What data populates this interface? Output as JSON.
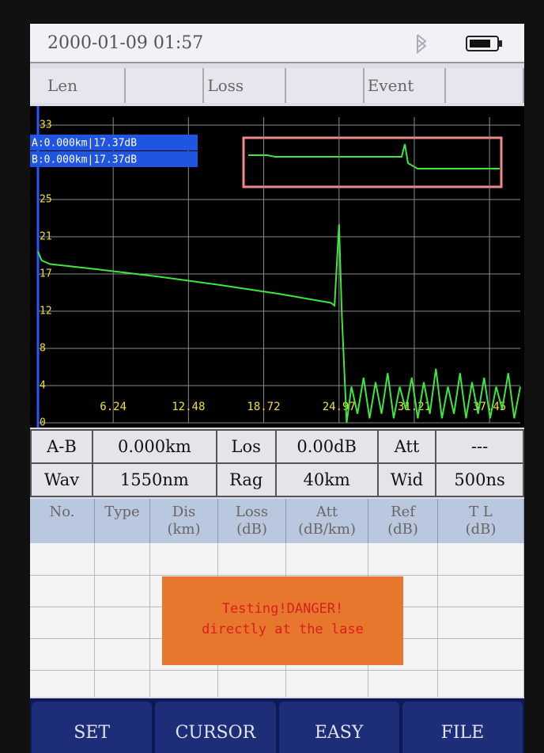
{
  "status": {
    "datetime": "2000-01-09 01:57"
  },
  "tabs": [
    "Len",
    "Loss",
    "Event"
  ],
  "chart_data": {
    "type": "line",
    "cursor_labels": [
      "A:0.000km|17.37dB",
      "B:0.000km|17.37dB"
    ],
    "x": [
      0,
      0.3,
      1,
      5,
      10,
      15,
      20,
      24.3,
      24.6,
      24.97,
      25.2,
      25.6,
      26,
      26.5,
      27,
      27.5,
      28,
      28.5,
      29,
      29.5,
      30,
      30.5,
      31,
      31.5,
      32,
      32.5,
      33,
      33.5,
      34,
      34.5,
      35,
      35.5,
      36,
      36.5,
      37,
      37.5,
      38,
      38.5,
      39,
      39.5,
      40
    ],
    "series": [
      {
        "color": "#3ee63e",
        "values": [
          19,
          18,
          17.6,
          17,
          16.2,
          15.3,
          14.3,
          13.3,
          13,
          22,
          12,
          0,
          4,
          1,
          5,
          0.5,
          4.5,
          1,
          5.5,
          0.5,
          4,
          1.5,
          5,
          0.5,
          4.5,
          1,
          6,
          0.5,
          4,
          1,
          5.5,
          0.5,
          4.5,
          1,
          5,
          0.5,
          4,
          1.5,
          5.5,
          0.5,
          4
        ]
      }
    ],
    "xlim": [
      0,
      40
    ],
    "ylim": [
      0,
      33
    ],
    "xticks": [
      6.24,
      12.48,
      18.72,
      24.97,
      31.21,
      37.45
    ],
    "yticks": [
      0,
      {
        "value": 4.125,
        "label": "4"
      },
      {
        "value": 8.25,
        "label": "8"
      },
      {
        "value": 12.375,
        "label": "12"
      },
      {
        "value": 16.5,
        "label": "17"
      },
      {
        "value": 20.625,
        "label": "21"
      },
      {
        "value": 24.75,
        "label": "25"
      },
      33
    ],
    "grid": true
  },
  "info": {
    "rows": [
      [
        "A-B",
        "0.000km",
        "Los",
        "0.00dB",
        "Att",
        "---"
      ],
      [
        "Wav",
        "1550nm",
        "Rag",
        "40km",
        "Wid",
        "500ns"
      ]
    ]
  },
  "events": {
    "headers": [
      [
        "No."
      ],
      [
        "Type"
      ],
      [
        "Dis",
        "(km)"
      ],
      [
        "Loss",
        "(dB)"
      ],
      [
        "Att",
        "(dB/km)"
      ],
      [
        "Ref",
        "(dB)"
      ],
      [
        "T L",
        "(dB)"
      ]
    ]
  },
  "warning": [
    "Testing!DANGER!",
    "directly at the lase"
  ],
  "buttons": [
    "SET",
    "CURSOR",
    "EASY",
    "FILE"
  ]
}
